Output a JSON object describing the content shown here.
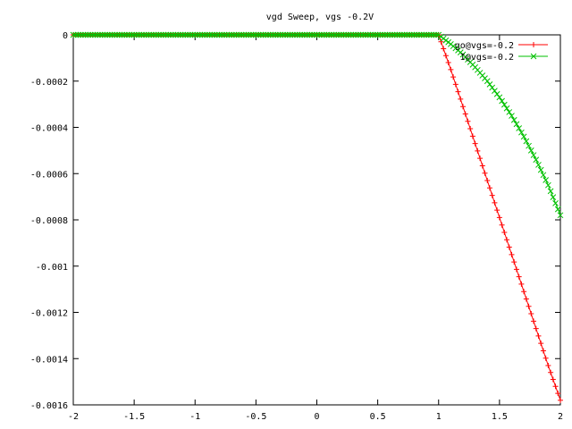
{
  "chart_data": {
    "type": "line",
    "title": "vgd Sweep, vgs -0.2V",
    "xlabel": "",
    "ylabel": "",
    "xlim": [
      -2,
      2
    ],
    "ylim": [
      -0.0016,
      0
    ],
    "x_ticks": [
      -2,
      -1.5,
      -1,
      -0.5,
      0,
      0.5,
      1,
      1.5,
      2
    ],
    "x_tick_labels": [
      "-2",
      "-1.5",
      "-1",
      "-0.5",
      "0",
      "0.5",
      "1",
      "1.5",
      "2"
    ],
    "y_ticks": [
      0,
      -0.0002,
      -0.0004,
      -0.0006,
      -0.0008,
      -0.001,
      -0.0012,
      -0.0014,
      -0.0016
    ],
    "y_tick_labels": [
      "0",
      "-0.0002",
      "-0.0004",
      "-0.0006",
      "-0.0008",
      "-0.001",
      "-0.0012",
      "-0.0014",
      "-0.0016"
    ],
    "grid": false,
    "legend_position": "top-right",
    "series": [
      {
        "name": "go@vgs=-0.2",
        "color": "#ff0000",
        "marker": "plus",
        "x": [
          -2,
          -1,
          0,
          1,
          1.1,
          1.2,
          1.3,
          1.4,
          1.5,
          1.6,
          1.7,
          1.8,
          1.9,
          2
        ],
        "y": [
          0,
          0,
          0,
          0,
          -0.00015,
          -0.00031,
          -0.00047,
          -0.00063,
          -0.00079,
          -0.00095,
          -0.00111,
          -0.00127,
          -0.00143,
          -0.00158
        ]
      },
      {
        "name": "I@vgs=-0.2",
        "color": "#00c000",
        "marker": "cross",
        "x": [
          -2,
          -1,
          0,
          1,
          1.1,
          1.2,
          1.3,
          1.4,
          1.5,
          1.6,
          1.7,
          1.8,
          1.9,
          2
        ],
        "y": [
          0,
          0,
          0,
          0,
          -4e-05,
          -8.5e-05,
          -0.00014,
          -0.0002,
          -0.00027,
          -0.00035,
          -0.00044,
          -0.00054,
          -0.00065,
          -0.00078
        ]
      }
    ]
  }
}
